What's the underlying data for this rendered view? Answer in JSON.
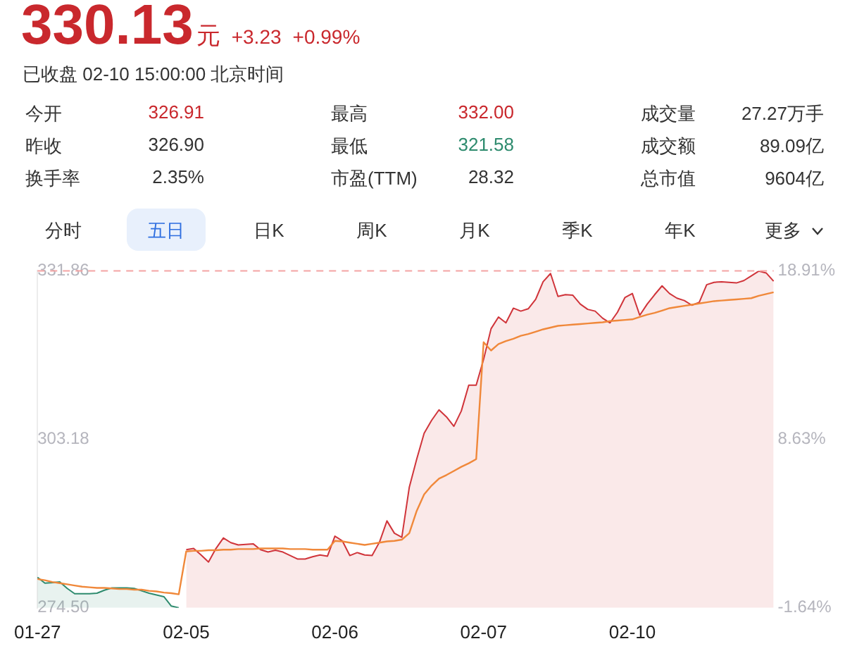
{
  "chart_data": {
    "type": "line",
    "title": "330.13",
    "subtitle": "已收盘 02-10 15:00:00 北京时间",
    "annotations": [
      "元",
      "+3.23",
      "+0.99%",
      "今开",
      "326.91",
      "最高",
      "332.00",
      "成交量",
      "27.27万手",
      "昨收",
      "326.90",
      "最低",
      "321.58",
      "成交额",
      "89.09亿",
      "换手率",
      "2.35%",
      "市盈(TTM)",
      "28.32",
      "总市值",
      "9604亿",
      "分时",
      "五日",
      "日K",
      "周K",
      "月K",
      "季K",
      "年K",
      "更多"
    ],
    "categories": [
      "01-27",
      null,
      null,
      null,
      null,
      null,
      null,
      null,
      null,
      null,
      null,
      null,
      null,
      null,
      null,
      null,
      null,
      null,
      null,
      null,
      "02-05",
      null,
      null,
      null,
      null,
      null,
      null,
      null,
      null,
      null,
      null,
      null,
      null,
      null,
      null,
      null,
      null,
      null,
      null,
      null,
      "02-06",
      null,
      null,
      null,
      null,
      null,
      null,
      null,
      null,
      null,
      null,
      null,
      null,
      null,
      null,
      null,
      null,
      null,
      null,
      null,
      "02-07",
      null,
      null,
      null,
      null,
      null,
      null,
      null,
      null,
      null,
      null,
      null,
      null,
      null,
      null,
      null,
      null,
      null,
      null,
      null,
      "02-10",
      null,
      null,
      null,
      null,
      null,
      null,
      null,
      null,
      null,
      null,
      null,
      null,
      null,
      null,
      null,
      null,
      null,
      null,
      null
    ],
    "ylim": [
      274.5,
      331.86
    ],
    "yticks": [
      {
        "value": 274.5,
        "label": "274.50"
      },
      {
        "value": 303.18,
        "label": "303.18"
      },
      {
        "value": 331.86,
        "label": "331.86"
      }
    ],
    "y2lim": [
      -1.64,
      18.91
    ],
    "y2ticks": [
      {
        "value": -1.64,
        "label": "-1.64%"
      },
      {
        "value": 8.63,
        "label": "8.63%"
      },
      {
        "value": 18.91,
        "label": "18.91%"
      }
    ],
    "ref_lines": [
      {
        "axis": "y",
        "value": 331.86,
        "color": "#f4a3a3",
        "line_style": "dashed"
      }
    ],
    "grid": false,
    "legend": false,
    "marker": "none",
    "series": [
      {
        "type": "area",
        "color": "#2e8b6e",
        "values": [
          279.7,
          278.7,
          278.8,
          278.9,
          277.8,
          276.9,
          276.9,
          276.9,
          277.0,
          277.5,
          277.9,
          277.9,
          277.9,
          277.8,
          277.4,
          277.0,
          276.7,
          276.4,
          274.8,
          274.5,
          null,
          null,
          null,
          null,
          null,
          null,
          null,
          null,
          null,
          null,
          null,
          null,
          null,
          null,
          null,
          null,
          null,
          null,
          null,
          null,
          null,
          null,
          null,
          null,
          null,
          null,
          null,
          null,
          null,
          null,
          null,
          null,
          null,
          null,
          null,
          null,
          null,
          null,
          null,
          null,
          null,
          null,
          null,
          null,
          null,
          null,
          null,
          null,
          null,
          null,
          null,
          null,
          null,
          null,
          null,
          null,
          null,
          null,
          null,
          null,
          null,
          null,
          null,
          null,
          null,
          null,
          null,
          null,
          null,
          null,
          null,
          null,
          null,
          null,
          null,
          null,
          null,
          null,
          null,
          null
        ]
      },
      {
        "type": "area",
        "color": "#d0343a",
        "values": [
          null,
          null,
          null,
          null,
          null,
          null,
          null,
          null,
          null,
          null,
          null,
          null,
          null,
          null,
          null,
          null,
          null,
          null,
          null,
          null,
          284.4,
          284.6,
          283.5,
          282.3,
          284.6,
          286.4,
          285.6,
          285.2,
          285.3,
          285.4,
          284.4,
          284.0,
          284.3,
          284.0,
          283.4,
          282.8,
          282.8,
          283.2,
          283.5,
          283.3,
          286.7,
          285.9,
          283.4,
          283.9,
          283.5,
          283.4,
          285.7,
          289.3,
          287.2,
          286.5,
          295.0,
          299.8,
          304.2,
          306.4,
          308.2,
          307.0,
          305.4,
          308.0,
          312.4,
          312.4,
          316.8,
          322.0,
          324.0,
          323.0,
          325.5,
          325.0,
          325.4,
          327.0,
          330.0,
          331.4,
          327.5,
          327.8,
          327.7,
          326.2,
          325.3,
          325.0,
          323.8,
          323.0,
          324.8,
          327.3,
          328.0,
          324.3,
          326.2,
          327.8,
          329.3,
          328.0,
          327.2,
          326.8,
          326.0,
          326.5,
          329.5,
          329.9,
          330.0,
          329.9,
          329.8,
          330.2,
          331.0,
          331.8,
          331.5,
          330.1
        ]
      },
      {
        "color": "#f0883a",
        "values": [
          279.4,
          279.2,
          278.9,
          278.7,
          278.5,
          278.3,
          278.1,
          278.0,
          277.9,
          277.9,
          277.8,
          277.7,
          277.7,
          277.6,
          277.6,
          277.4,
          277.3,
          277.1,
          277.0,
          276.8,
          284.1,
          284.2,
          284.2,
          284.3,
          284.3,
          284.4,
          284.4,
          284.5,
          284.5,
          284.5,
          284.6,
          284.6,
          284.6,
          284.6,
          284.5,
          284.5,
          284.5,
          284.4,
          284.4,
          284.4,
          285.9,
          285.8,
          285.6,
          285.4,
          285.2,
          285.4,
          285.6,
          285.8,
          285.9,
          286.1,
          287.2,
          291.0,
          293.8,
          295.3,
          296.5,
          297.1,
          297.8,
          298.5,
          299.1,
          299.8,
          319.7,
          318.3,
          319.4,
          319.9,
          320.3,
          320.8,
          321.1,
          321.5,
          321.9,
          322.2,
          322.5,
          322.6,
          322.7,
          322.8,
          322.9,
          323.0,
          323.1,
          323.3,
          323.4,
          323.5,
          323.6,
          324.0,
          324.4,
          324.7,
          325.1,
          325.5,
          325.7,
          325.9,
          326.1,
          326.3,
          326.5,
          326.7,
          326.8,
          326.9,
          327.0,
          327.1,
          327.2,
          327.6,
          327.9,
          328.2
        ]
      }
    ]
  }
}
